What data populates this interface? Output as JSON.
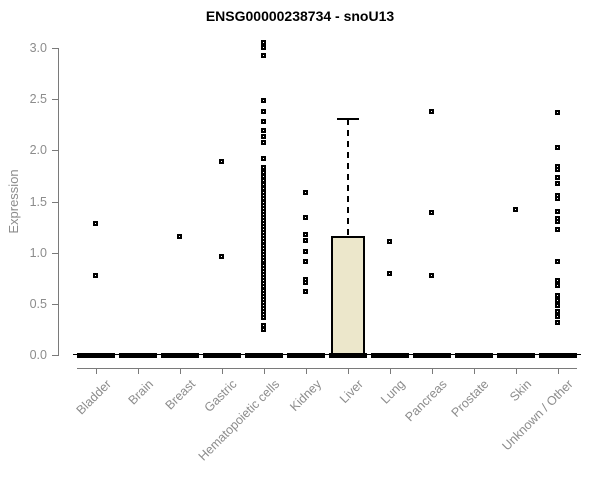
{
  "chart_data": {
    "type": "boxplot",
    "title": "ENSG00000238734 - snoU13",
    "xlabel": "",
    "ylabel": "Expression",
    "ylim": [
      0.0,
      3.0
    ],
    "yticks": [
      "0.0",
      "0.5",
      "1.0",
      "1.5",
      "2.0",
      "2.5",
      "3.0"
    ],
    "grid": false,
    "legend": "none",
    "categories": [
      "Bladder",
      "Brain",
      "Breast",
      "Gastric",
      "Hematopoietic cells",
      "Kidney",
      "Liver",
      "Lung",
      "Pancreas",
      "Prostate",
      "Skin",
      "Unknown / Other"
    ],
    "boxes": [
      {
        "category": "Bladder",
        "median": 0,
        "q1": 0,
        "q3": 0,
        "whisker_low": 0,
        "whisker_high": 0
      },
      {
        "category": "Brain",
        "median": 0,
        "q1": 0,
        "q3": 0,
        "whisker_low": 0,
        "whisker_high": 0
      },
      {
        "category": "Breast",
        "median": 0,
        "q1": 0,
        "q3": 0,
        "whisker_low": 0,
        "whisker_high": 0
      },
      {
        "category": "Gastric",
        "median": 0,
        "q1": 0,
        "q3": 0,
        "whisker_low": 0,
        "whisker_high": 0
      },
      {
        "category": "Hematopoietic cells",
        "median": 0,
        "q1": 0,
        "q3": 0,
        "whisker_low": 0,
        "whisker_high": 0
      },
      {
        "category": "Kidney",
        "median": 0,
        "q1": 0,
        "q3": 0,
        "whisker_low": 0,
        "whisker_high": 0
      },
      {
        "category": "Liver",
        "median": 0,
        "q1": 0,
        "q3": 1.16,
        "whisker_low": 0,
        "whisker_high": 2.31
      },
      {
        "category": "Lung",
        "median": 0,
        "q1": 0,
        "q3": 0,
        "whisker_low": 0,
        "whisker_high": 0
      },
      {
        "category": "Pancreas",
        "median": 0,
        "q1": 0,
        "q3": 0,
        "whisker_low": 0,
        "whisker_high": 0
      },
      {
        "category": "Prostate",
        "median": 0,
        "q1": 0,
        "q3": 0,
        "whisker_low": 0,
        "whisker_high": 0
      },
      {
        "category": "Skin",
        "median": 0,
        "q1": 0,
        "q3": 0,
        "whisker_low": 0,
        "whisker_high": 0
      },
      {
        "category": "Unknown / Other",
        "median": 0,
        "q1": 0,
        "q3": 0,
        "whisker_low": 0,
        "whisker_high": 0
      }
    ],
    "outlier_points": {
      "Bladder": [
        1.28,
        0.77
      ],
      "Brain": [],
      "Breast": [
        1.15
      ],
      "Gastric": [
        1.89,
        0.96
      ],
      "Hematopoietic cells": [
        3.05,
        3.0,
        2.92,
        2.48,
        2.37,
        2.28,
        2.19,
        2.13,
        2.07,
        1.92,
        1.83,
        1.78,
        1.74,
        1.7,
        1.66,
        1.62,
        1.58,
        1.55,
        1.52,
        1.49,
        1.46,
        1.43,
        1.4,
        1.37,
        1.34,
        1.31,
        1.28,
        1.25,
        1.22,
        1.19,
        1.16,
        1.13,
        1.1,
        1.07,
        1.04,
        1.01,
        0.98,
        0.95,
        0.92,
        0.87,
        0.84,
        0.81,
        0.78,
        0.75,
        0.72,
        0.69,
        0.66,
        0.63,
        0.6,
        0.57,
        0.54,
        0.51,
        0.48,
        0.45,
        0.42,
        0.39,
        0.36,
        0.28,
        0.24
      ],
      "Kidney": [
        1.58,
        1.34,
        1.17,
        1.11,
        1.01,
        0.91,
        0.73,
        0.7,
        0.62
      ],
      "Liver": [],
      "Lung": [
        1.1,
        0.79
      ],
      "Pancreas": [
        2.37,
        1.39,
        0.77
      ],
      "Prostate": [],
      "Skin": [
        1.42
      ],
      "Unknown / Other": [
        2.36,
        2.02,
        1.84,
        1.81,
        1.73,
        1.67,
        1.55,
        1.52,
        1.4,
        1.33,
        1.3,
        1.22,
        0.91,
        0.72,
        0.67,
        0.58,
        0.53,
        0.48,
        0.42,
        0.37,
        0.31
      ]
    },
    "colors": {
      "box_fill": "#ECE7CB",
      "box_border": "#000000",
      "point": "#000000",
      "axis": "#7a7a7a",
      "tick_label": "#8c8c8c",
      "title": "#000000",
      "background": "#ffffff"
    }
  }
}
